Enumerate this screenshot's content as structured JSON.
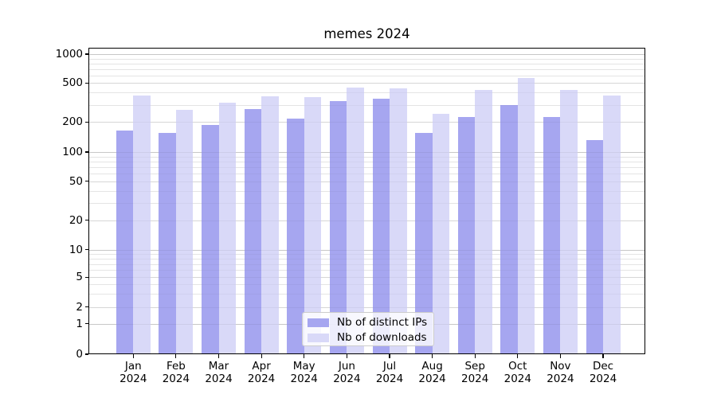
{
  "chart_data": {
    "type": "bar",
    "title": "memes 2024",
    "categories": [
      "Jan",
      "Feb",
      "Mar",
      "Apr",
      "May",
      "Jun",
      "Jul",
      "Aug",
      "Sep",
      "Oct",
      "Nov",
      "Dec"
    ],
    "x_tick_second_line": "2024",
    "series": [
      {
        "name": "Nb of distinct IPs",
        "color": "#a6a6f0",
        "values": [
          165,
          157,
          186,
          271,
          218,
          330,
          345,
          157,
          226,
          296,
          224,
          132
        ]
      },
      {
        "name": "Nb of downloads",
        "color": "#d9d9f8",
        "values": [
          376,
          266,
          314,
          370,
          358,
          452,
          446,
          243,
          424,
          566,
          423,
          376
        ]
      }
    ],
    "y_axis": {
      "scale": "symlog",
      "ticks": [
        0,
        1,
        2,
        5,
        10,
        20,
        50,
        100,
        200,
        500,
        1000
      ],
      "tick_labels": [
        "0",
        "1",
        "2",
        "5",
        "10",
        "20",
        "50",
        "100",
        "200",
        "500",
        "1000"
      ],
      "ylim": [
        0,
        1160
      ]
    },
    "grid": {
      "major": true,
      "minor": true
    },
    "legend": {
      "position": "lower center (inside plot)"
    }
  }
}
